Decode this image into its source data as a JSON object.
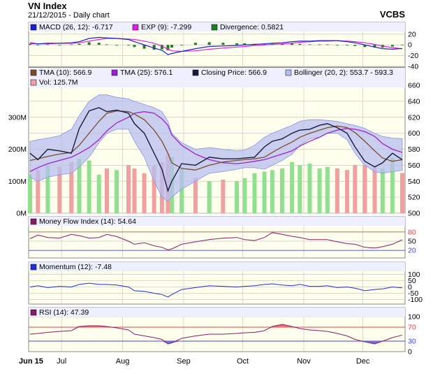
{
  "header": {
    "title": "VN Index",
    "subtitle": "21/12/2015 - Daily chart",
    "source": "VCBS"
  },
  "colors": {
    "panel_bg": "#ffffee",
    "legend_bg": "#eef0ff",
    "grid": "#c8c8c8",
    "close": "#1a1a3a",
    "tma10": "#7a4b2a",
    "tma25": "#a020d0",
    "band_fill": "#b8bff0",
    "band_edge": "#8a95e0",
    "vol_up": "#90e090",
    "vol_down": "#f0a0a0",
    "macd": "#2020d0",
    "exp": "#e020e0",
    "div_pos": "#208020",
    "div_neg": "#20a020",
    "mfi": "#8b1a6b",
    "momentum": "#2030d0",
    "rsi": "#8b1a6b",
    "rsi_hi": "#f07070",
    "rsi_lo": "#7070e0",
    "level_line_hi": "#e04040",
    "level_line_lo": "#4040e0"
  },
  "legends": {
    "macd": "MACD (26, 12): -6.717",
    "exp": "EXP (9): -7.299",
    "divergence": "Divergence: 0.5821",
    "tma10": "TMA (10): 566.9",
    "tma25": "TMA (25): 576.1",
    "close": "Closing Price: 566.9",
    "bollinger": "Bollinger (20, 2): 553.7 - 593.3",
    "vol": "Vol: 125.7M",
    "mfi": "Money Flow Index (14): 54.64",
    "momentum": "Momentum (12): -7.48",
    "rsi": "RSI (14): 47.39"
  },
  "axes": {
    "macd_ticks": [
      "20",
      "0",
      "-20",
      "-40"
    ],
    "price_ticks": [
      "660",
      "640",
      "620",
      "600",
      "580",
      "560",
      "540",
      "520",
      "500"
    ],
    "volume_ticks": [
      "300M",
      "200M",
      "100M",
      "0M"
    ],
    "mfi_ticks": [
      "80",
      "50",
      "20"
    ],
    "momentum_ticks": [
      "100",
      "50",
      "0",
      "-50",
      "-100"
    ],
    "rsi_ticks": [
      "100",
      "70",
      "30",
      "0"
    ],
    "months": [
      "Jun 15",
      "Jul",
      "Aug",
      "Sep",
      "Oct",
      "Nov",
      "Dec"
    ]
  },
  "chart_data": {
    "type": "line",
    "x": [
      "2015-06-15",
      "2015-06-19",
      "2015-06-24",
      "2015-06-30",
      "2015-07-06",
      "2015-07-10",
      "2015-07-15",
      "2015-07-20",
      "2015-07-24",
      "2015-07-29",
      "2015-08-04",
      "2015-08-07",
      "2015-08-12",
      "2015-08-17",
      "2015-08-21",
      "2015-08-24",
      "2015-08-26",
      "2015-08-31",
      "2015-09-07",
      "2015-09-14",
      "2015-09-21",
      "2015-09-28",
      "2015-10-02",
      "2015-10-07",
      "2015-10-12",
      "2015-10-16",
      "2015-10-21",
      "2015-10-26",
      "2015-10-30",
      "2015-11-04",
      "2015-11-09",
      "2015-11-13",
      "2015-11-18",
      "2015-11-23",
      "2015-11-27",
      "2015-12-02",
      "2015-12-07",
      "2015-12-11",
      "2015-12-16",
      "2015-12-21"
    ],
    "series": [
      {
        "name": "Closing Price",
        "values": [
          575,
          567,
          580,
          578,
          575,
          606,
          628,
          632,
          627,
          629,
          625,
          612,
          600,
          575,
          555,
          528,
          540,
          562,
          560,
          570,
          568,
          568,
          569,
          570,
          583,
          590,
          593,
          600,
          604,
          605,
          610,
          612,
          607,
          600,
          583,
          565,
          558,
          563,
          575,
          566.9
        ]
      },
      {
        "name": "TMA (10)",
        "values": [
          566,
          568,
          571,
          574,
          576,
          585,
          600,
          615,
          625,
          628,
          627,
          624,
          617,
          604,
          590,
          575,
          563,
          556,
          554,
          560,
          564,
          566,
          567,
          568,
          570,
          576,
          583,
          589,
          595,
          600,
          604,
          607,
          609,
          607,
          601,
          590,
          578,
          569,
          565,
          566.9
        ]
      },
      {
        "name": "TMA (25)",
        "values": [
          552,
          557,
          562,
          566,
          570,
          575,
          582,
          592,
          603,
          613,
          620,
          625,
          627,
          625,
          618,
          610,
          598,
          585,
          574,
          567,
          563,
          562,
          563,
          565,
          567,
          570,
          574,
          578,
          584,
          590,
          595,
          600,
          604,
          606,
          605,
          602,
          596,
          587,
          580,
          576.1
        ]
      },
      {
        "name": "Bollinger Upper",
        "values": [
          590,
          592,
          594,
          597,
          605,
          622,
          640,
          648,
          648,
          645,
          643,
          640,
          636,
          632,
          627,
          615,
          600,
          588,
          580,
          582,
          580,
          578,
          579,
          585,
          595,
          600,
          605,
          610,
          615,
          617,
          617,
          616,
          615,
          612,
          610,
          606,
          600,
          596,
          594,
          593.3
        ]
      },
      {
        "name": "Bollinger Lower",
        "values": [
          545,
          540,
          545,
          548,
          550,
          558,
          570,
          588,
          600,
          605,
          605,
          590,
          570,
          540,
          520,
          515,
          520,
          530,
          540,
          550,
          552,
          555,
          557,
          557,
          555,
          560,
          566,
          574,
          585,
          593,
          595,
          600,
          600,
          592,
          575,
          560,
          552,
          550,
          552,
          553.7
        ]
      },
      {
        "name": "Vol",
        "values": [
          120,
          135,
          150,
          145,
          160,
          170,
          165,
          120,
          140,
          135,
          150,
          140,
          125,
          150,
          160,
          185,
          175,
          140,
          110,
          100,
          105,
          100,
          110,
          125,
          130,
          135,
          140,
          160,
          150,
          155,
          140,
          145,
          140,
          135,
          150,
          150,
          145,
          140,
          175,
          125.7
        ]
      },
      {
        "name": "MACD (26, 12)",
        "values": [
          4,
          2,
          3,
          3,
          4,
          6,
          12,
          14,
          13,
          12,
          10,
          6,
          0,
          -6,
          -10,
          -18,
          -16,
          -12,
          -7,
          -3,
          -2,
          -1,
          0,
          1,
          2,
          3,
          4,
          6,
          7,
          7,
          8,
          8,
          8,
          6,
          4,
          0,
          -4,
          -7,
          -8,
          -6.717
        ]
      },
      {
        "name": "EXP (9)",
        "values": [
          2,
          2,
          2,
          3,
          3,
          4,
          7,
          10,
          12,
          12,
          11,
          10,
          7,
          3,
          -2,
          -8,
          -11,
          -12,
          -11,
          -8,
          -6,
          -4,
          -3,
          -1,
          0,
          1,
          2,
          3,
          5,
          6,
          7,
          7,
          8,
          7,
          6,
          4,
          1,
          -2,
          -5,
          -7.299
        ]
      },
      {
        "name": "Money Flow Index (14)",
        "values": [
          58,
          70,
          62,
          60,
          72,
          68,
          60,
          62,
          72,
          65,
          50,
          40,
          45,
          35,
          30,
          22,
          25,
          40,
          48,
          55,
          60,
          62,
          55,
          52,
          62,
          78,
          72,
          66,
          62,
          55,
          55,
          55,
          48,
          42,
          40,
          30,
          28,
          32,
          40,
          54.64
        ]
      },
      {
        "name": "Momentum (12)",
        "values": [
          0,
          10,
          -5,
          5,
          0,
          20,
          30,
          20,
          20,
          15,
          0,
          -30,
          -35,
          -50,
          -60,
          -80,
          -60,
          -20,
          -5,
          10,
          5,
          0,
          5,
          10,
          20,
          25,
          15,
          10,
          20,
          5,
          5,
          10,
          -5,
          0,
          -10,
          -30,
          -20,
          -15,
          0,
          -7.48
        ]
      },
      {
        "name": "RSI (14)",
        "values": [
          50,
          52,
          55,
          58,
          60,
          72,
          74,
          74,
          72,
          68,
          62,
          50,
          45,
          40,
          35,
          22,
          25,
          38,
          45,
          50,
          50,
          52,
          54,
          55,
          60,
          72,
          78,
          72,
          66,
          62,
          60,
          58,
          52,
          45,
          35,
          28,
          22,
          30,
          40,
          47.39
        ]
      }
    ],
    "price_range": [
      500,
      660
    ],
    "volume_range": [
      0,
      400
    ],
    "macd_range": [
      -40,
      25
    ],
    "mfi_range": [
      0,
      100
    ],
    "momentum_range": [
      -125,
      125
    ],
    "rsi_range": [
      0,
      100
    ]
  }
}
